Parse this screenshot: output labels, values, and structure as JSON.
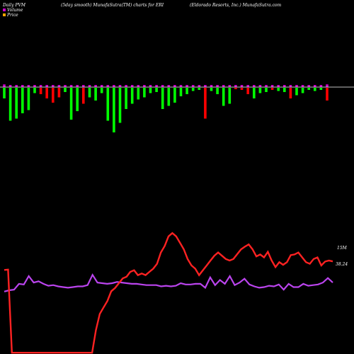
{
  "header": {
    "left": "Daily PVM",
    "center_left": "(5day smooth) MunafaSutra(TM) charts for ERI",
    "center_right": "(Eldorado  Resorts, Inc.) MunafaSutra.com"
  },
  "legend": {
    "items": [
      {
        "label": "Volume",
        "color": "#cc00cc"
      },
      {
        "label": "Price",
        "color": "#ffa500"
      }
    ]
  },
  "colors": {
    "background": "#000000",
    "up": "#00ff00",
    "down": "#ff0000",
    "volume_head": "#cc00cc",
    "price_line": "#ff2222",
    "volume_line": "#bb44ee",
    "baseline": "#ffffff"
  },
  "chart_data": {
    "type": "bar",
    "bars": {
      "columns": 54,
      "directions": [
        "u",
        "u",
        "u",
        "u",
        "u",
        "u",
        "d",
        "d",
        "d",
        "d",
        "u",
        "u",
        "u",
        "d",
        "u",
        "u",
        "u",
        "u",
        "u",
        "u",
        "u",
        "u",
        "u",
        "u",
        "u",
        "u",
        "u",
        "u",
        "u",
        "u",
        "u",
        "u",
        "u",
        "d",
        "u",
        "u",
        "u",
        "u",
        "d",
        "d",
        "d",
        "u",
        "u",
        "u",
        "d",
        "u",
        "u",
        "d",
        "u",
        "u",
        "u",
        "u",
        "u",
        "d"
      ],
      "magnitudes": [
        0.2,
        0.62,
        0.58,
        0.48,
        0.42,
        0.1,
        0.12,
        0.2,
        0.28,
        0.18,
        0.08,
        0.6,
        0.44,
        0.3,
        0.18,
        0.24,
        0.1,
        0.62,
        0.84,
        0.66,
        0.4,
        0.3,
        0.22,
        0.18,
        0.1,
        0.08,
        0.4,
        0.34,
        0.28,
        0.16,
        0.12,
        0.06,
        0.04,
        0.58,
        0.06,
        0.12,
        0.34,
        0.3,
        0.02,
        0.04,
        0.12,
        0.2,
        0.1,
        0.08,
        0.04,
        0.06,
        0.08,
        0.2,
        0.14,
        0.1,
        0.04,
        0.06,
        0.04,
        0.24
      ],
      "heads": [
        0.07,
        0.03,
        0.05,
        0.02,
        0.02,
        0.02,
        0.02,
        0.03,
        0.02,
        0.05,
        0.02,
        0.02,
        0.02,
        0.02,
        0.02,
        0.02,
        0.02,
        0.05,
        0.02,
        0.02,
        0.02,
        0.02,
        0.02,
        0.02,
        0.02,
        0.02,
        0.02,
        0.02,
        0.02,
        0.02,
        0.02,
        0.02,
        0.02,
        0.03,
        0.02,
        0.02,
        0.02,
        0.02,
        0.02,
        0.02,
        0.02,
        0.02,
        0.02,
        0.02,
        0.02,
        0.02,
        0.02,
        0.02,
        0.02,
        0.02,
        0.02,
        0.02,
        0.02,
        0.07
      ]
    },
    "price_series": {
      "name": "Price",
      "last_label": "38.24",
      "values": [
        35.6,
        35.7,
        10,
        10,
        10,
        10,
        10,
        10,
        10,
        10,
        10,
        10,
        10,
        10,
        10,
        10,
        10,
        10,
        10,
        10,
        10,
        10,
        10,
        10,
        17,
        22,
        24,
        26,
        29,
        30,
        31.5,
        33,
        33.5,
        35,
        35.5,
        34,
        34.5,
        34,
        35,
        36,
        37.5,
        41,
        43,
        46,
        47,
        46,
        44,
        42,
        39,
        37,
        36,
        34,
        35.5,
        37,
        38.5,
        40,
        41,
        40,
        39,
        38.5,
        39,
        40.5,
        42,
        42.8,
        43.5,
        42,
        39.8,
        40.4,
        39.5,
        41.2,
        38.5,
        36.5,
        38,
        37.2,
        38,
        40.2,
        40.4,
        41,
        39.5,
        38,
        37.5,
        39,
        39.5,
        37,
        38.2,
        38.5,
        38.24
      ]
    },
    "volume_series": {
      "name": "Volume",
      "last_label": "15M",
      "values": [
        38.2,
        38.4,
        38.5,
        39.4,
        39.3,
        40.6,
        39.6,
        39.8,
        39.4,
        39.1,
        39.2,
        39.0,
        38.9,
        38.8,
        38.9,
        39.0,
        39.0,
        39.2,
        40.8,
        39.6,
        39.5,
        39.4,
        39.5,
        39.7,
        39.6,
        39.5,
        39.4,
        39.4,
        39.3,
        39.2,
        39.2,
        39.2,
        39.0,
        39.1,
        39.0,
        39.1,
        39.5,
        39.3,
        39.3,
        39.4,
        39.4,
        38.8,
        40.4,
        39.2,
        40.0,
        39.4,
        40.6,
        39.2,
        39.6,
        40.2,
        39.3,
        39.0,
        38.8,
        38.9,
        39.1,
        39.0,
        39.3,
        38.5,
        39.4,
        38.9,
        38.9,
        39.4,
        39.1,
        39.2,
        39.3,
        39.6,
        40.3,
        39.6
      ]
    },
    "price_range": [
      10,
      47
    ],
    "volume_range": [
      32,
      48
    ],
    "grid": false
  }
}
